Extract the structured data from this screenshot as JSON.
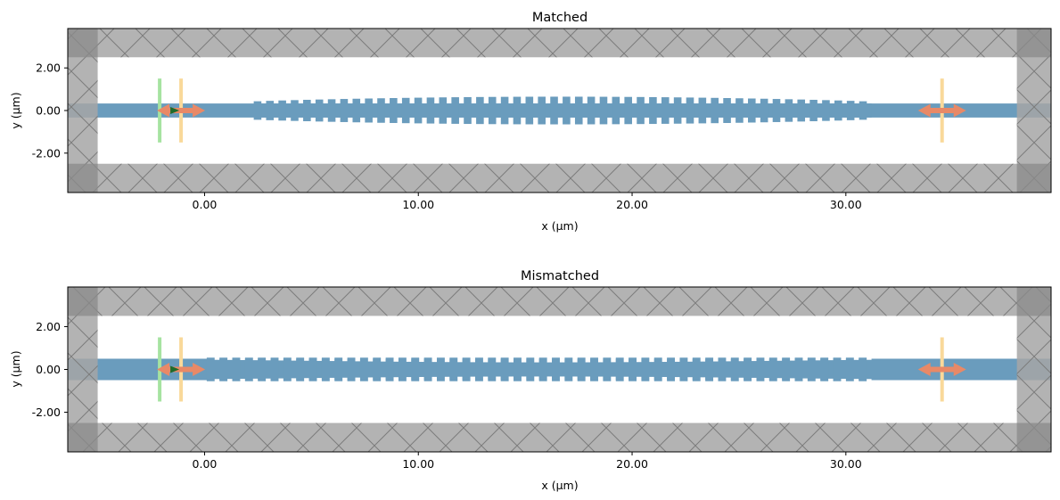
{
  "chart_data": [
    {
      "type": "structure-plot",
      "title": "Matched",
      "xlabel": "x (µm)",
      "ylabel": "y (µm)",
      "xlim": [
        -6.4,
        39.6
      ],
      "ylim": [
        -3.85,
        3.85
      ],
      "xticks": [
        "0.00",
        "10.00",
        "20.00",
        "30.00"
      ],
      "xtick_values": [
        0,
        10,
        20,
        30
      ],
      "yticks": [
        "2.00",
        "0.00",
        "-2.00"
      ],
      "ytick_values": [
        2,
        0,
        -2
      ],
      "pml": {
        "x_min": -5,
        "x_max": 38,
        "y_min": -2.5,
        "y_max": 2.5
      },
      "waveguide": {
        "half_width": 0.33,
        "x_from": -6.4,
        "x_to": 39.6
      },
      "grating": {
        "x_start": 2.3,
        "x_end": 31.2,
        "n_teeth": 50,
        "max_half_width": 0.65,
        "min_half_width": 0.42,
        "taper": "both-ends"
      },
      "monitors": [
        {
          "kind": "source",
          "x": -2.1,
          "half_height": 1.5,
          "color": "#a6e3a1"
        },
        {
          "kind": "flux",
          "x": -1.1,
          "half_height": 1.5,
          "color": "#f9d99a"
        },
        {
          "kind": "flux",
          "x": 34.5,
          "half_height": 1.5,
          "color": "#f9d99a"
        }
      ],
      "arrows": [
        {
          "x": -1.1,
          "color": "#e88967"
        },
        {
          "x": 34.5,
          "color": "#e88967"
        }
      ],
      "colors": {
        "waveguide": "#6a9cbd",
        "pml": "#a6a6a6",
        "pml_corner": "#8c8c8c",
        "hatch": "#7a7a7a"
      }
    },
    {
      "type": "structure-plot",
      "title": "Mismatched",
      "xlabel": "x (µm)",
      "ylabel": "y (µm)",
      "xlim": [
        -6.4,
        39.6
      ],
      "ylim": [
        -3.85,
        3.85
      ],
      "xticks": [
        "0.00",
        "10.00",
        "20.00",
        "30.00"
      ],
      "xtick_values": [
        0,
        10,
        20,
        30
      ],
      "yticks": [
        "2.00",
        "0.00",
        "-2.00"
      ],
      "ytick_values": [
        2,
        0,
        -2
      ],
      "pml": {
        "x_min": -5,
        "x_max": 38,
        "y_min": -2.5,
        "y_max": 2.5
      },
      "waveguide": {
        "half_width": 0.5,
        "x_from": -6.4,
        "x_to": 39.6
      },
      "grating": {
        "x_start": 0.1,
        "x_end": 31.2,
        "n_teeth": 52,
        "max_half_width": 0.55,
        "min_half_width": 0.5,
        "taper": "flat",
        "notch_depth": 0.33
      },
      "monitors": [
        {
          "kind": "source",
          "x": -2.1,
          "half_height": 1.5,
          "color": "#a6e3a1"
        },
        {
          "kind": "flux",
          "x": -1.1,
          "half_height": 1.5,
          "color": "#f9d99a"
        },
        {
          "kind": "flux",
          "x": 34.5,
          "half_height": 1.5,
          "color": "#f9d99a"
        }
      ],
      "arrows": [
        {
          "x": -1.1,
          "color": "#e88967"
        },
        {
          "x": 34.5,
          "color": "#e88967"
        }
      ],
      "colors": {
        "waveguide": "#6a9cbd",
        "pml": "#a6a6a6",
        "pml_corner": "#8c8c8c",
        "hatch": "#7a7a7a"
      }
    }
  ]
}
